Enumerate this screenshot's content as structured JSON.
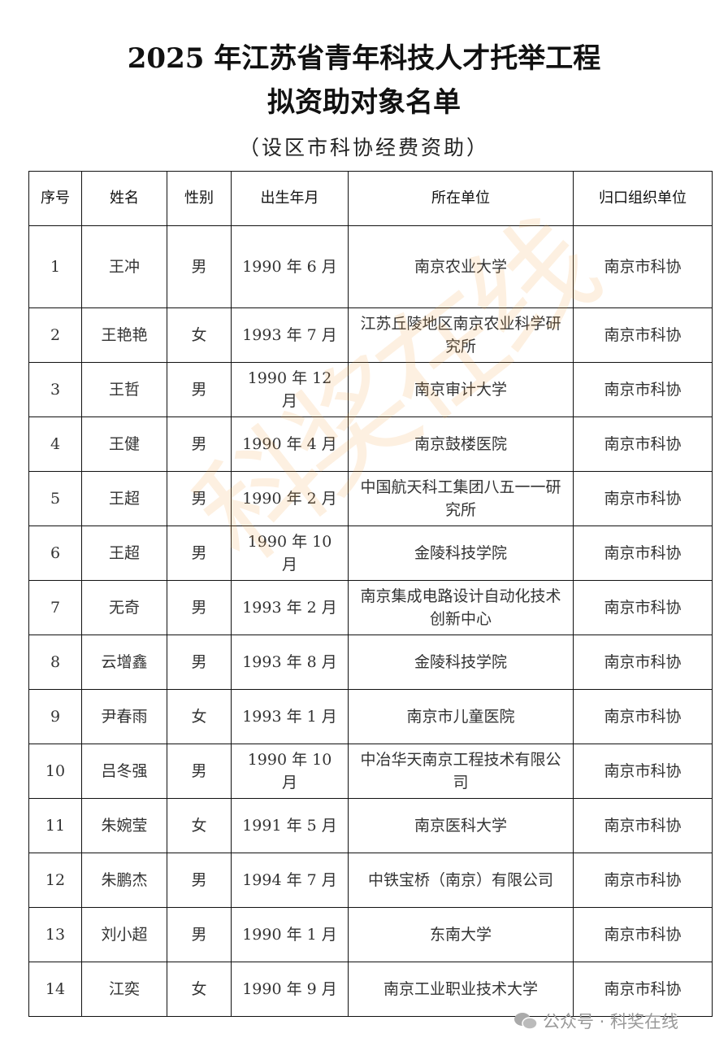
{
  "title_line1": "2025 年江苏省青年科技人才托举工程",
  "title_line2": "拟资助对象名单",
  "subtitle": "（设区市科协经费资助）",
  "table": {
    "headers": [
      "序号",
      "姓名",
      "性别",
      "出生年月",
      "所在单位",
      "归口组织单位"
    ],
    "rows": [
      [
        "1",
        "王冲",
        "男",
        "1990 年 6 月",
        "南京农业大学",
        "南京市科协"
      ],
      [
        "2",
        "王艳艳",
        "女",
        "1993 年 7 月",
        "江苏丘陵地区南京农业科学研究所",
        "南京市科协"
      ],
      [
        "3",
        "王哲",
        "男",
        "1990 年 12 月",
        "南京审计大学",
        "南京市科协"
      ],
      [
        "4",
        "王健",
        "男",
        "1990 年 4 月",
        "南京鼓楼医院",
        "南京市科协"
      ],
      [
        "5",
        "王超",
        "男",
        "1990 年 2 月",
        "中国航天科工集团八五一一研究所",
        "南京市科协"
      ],
      [
        "6",
        "王超",
        "男",
        "1990 年 10 月",
        "金陵科技学院",
        "南京市科协"
      ],
      [
        "7",
        "无奇",
        "男",
        "1993 年 2 月",
        "南京集成电路设计自动化技术创新中心",
        "南京市科协"
      ],
      [
        "8",
        "云增鑫",
        "男",
        "1993 年 8 月",
        "金陵科技学院",
        "南京市科协"
      ],
      [
        "9",
        "尹春雨",
        "女",
        "1993 年 1 月",
        "南京市儿童医院",
        "南京市科协"
      ],
      [
        "10",
        "吕冬强",
        "男",
        "1990 年 10 月",
        "中冶华天南京工程技术有限公司",
        "南京市科协"
      ],
      [
        "11",
        "朱婉莹",
        "女",
        "1991 年 5 月",
        "南京医科大学",
        "南京市科协"
      ],
      [
        "12",
        "朱鹏杰",
        "男",
        "1994 年 7 月",
        "中铁宝桥（南京）有限公司",
        "南京市科协"
      ],
      [
        "13",
        "刘小超",
        "男",
        "1990 年 1 月",
        "东南大学",
        "南京市科协"
      ],
      [
        "14",
        "江奕",
        "女",
        "1990 年 9 月",
        "南京工业职业技术大学",
        "南京市科协"
      ]
    ]
  },
  "watermark": "科奖在线",
  "footer": {
    "icon": "wechat-icon",
    "text": "公众号 · 科奖在线"
  }
}
